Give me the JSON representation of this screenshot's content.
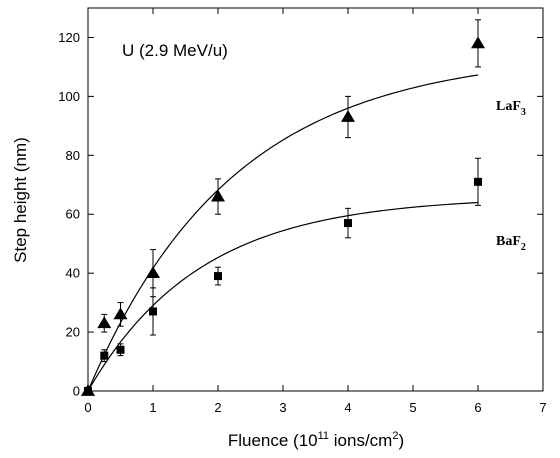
{
  "chart_data": {
    "type": "scatter",
    "title": "",
    "annotation": "U (2.9 MeV/u)",
    "xlabel": {
      "prefix": "Fluence (10",
      "exp": "11",
      "mid": " ions/cm",
      "exp2": "2",
      "suffix": ")"
    },
    "ylabel": "Step height  (nm)",
    "xlim": [
      0,
      7
    ],
    "ylim": [
      0,
      130
    ],
    "xticks": [
      0,
      1,
      2,
      3,
      4,
      5,
      6,
      7
    ],
    "yticks": [
      0,
      20,
      40,
      60,
      80,
      100,
      120
    ],
    "grid": false,
    "series": [
      {
        "name": "LaF3",
        "label_base": "LaF",
        "label_sub": "3",
        "marker": "triangle",
        "color": "#000000",
        "x": [
          0,
          0.25,
          0.5,
          1,
          2,
          4,
          6
        ],
        "y": [
          0,
          23,
          26,
          40,
          66,
          93,
          118
        ],
        "yerr": [
          0,
          3,
          4,
          8,
          6,
          7,
          8
        ],
        "fit_saturation": 115,
        "fit_rate": 0.45
      },
      {
        "name": "BaF2",
        "label_base": "BaF",
        "label_sub": "2",
        "marker": "square",
        "color": "#000000",
        "x": [
          0,
          0.25,
          0.5,
          1,
          2,
          4,
          6
        ],
        "y": [
          0,
          12,
          14,
          27,
          39,
          57,
          71
        ],
        "yerr": [
          0,
          2,
          2,
          8,
          3,
          5,
          8
        ],
        "fit_saturation": 66,
        "fit_rate": 0.58
      }
    ]
  }
}
